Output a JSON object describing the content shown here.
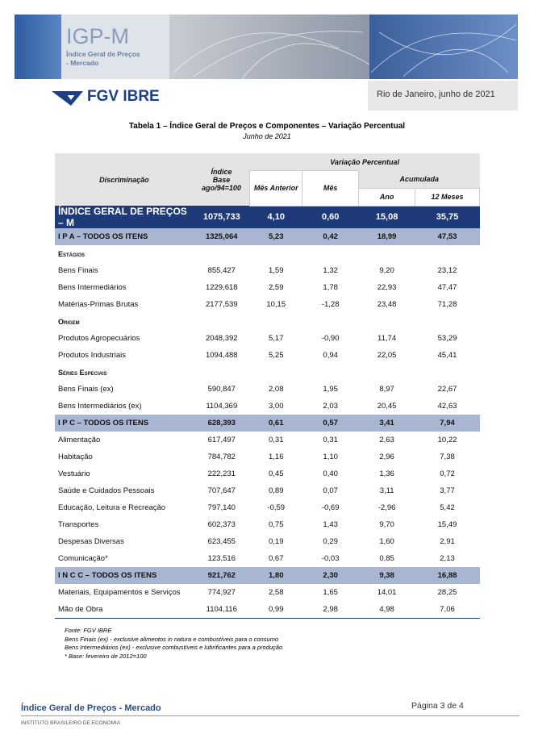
{
  "header": {
    "title": "IGP-M",
    "subtitle_lines": [
      "Índice Geral de Preços",
      "- Mercado"
    ],
    "logo": "FGV IBRE",
    "date": "Rio de Janeiro, junho de 2021"
  },
  "table": {
    "title": "Tabela 1 – Índice Geral de Preços e Componentes – Variação Percentual",
    "subtitle": "Junho de 2021",
    "headers": {
      "discriminacao": "Discriminação",
      "indice": "Índice Base ago/94=100",
      "variacao": "Variação Percentual",
      "mes_anterior": "Mês Anterior",
      "mes": "Mês",
      "acumulada": "Acumulada",
      "ano": "Ano",
      "doze_meses": "12 Meses"
    },
    "rows": [
      {
        "kind": "main",
        "cells": [
          "ÍNDICE GERAL DE PREÇOS – M",
          "1075,733",
          "4,10",
          "0,60",
          "15,08",
          "35,75"
        ]
      },
      {
        "kind": "group",
        "cells": [
          "I P A – TODOS OS ITENS",
          "1325,064",
          "5,23",
          "0,42",
          "18,99",
          "47,53"
        ]
      },
      {
        "kind": "section",
        "cells": [
          "Estágios"
        ]
      },
      {
        "kind": "item",
        "cells": [
          "Bens Finais",
          "855,427",
          "1,59",
          "1,32",
          "9,20",
          "23,12"
        ]
      },
      {
        "kind": "item",
        "cells": [
          "Bens Intermediários",
          "1229,618",
          "2,59",
          "1,78",
          "22,93",
          "47,47"
        ]
      },
      {
        "kind": "item",
        "cells": [
          "Matérias-Primas Brutas",
          "2177,539",
          "10,15",
          "-1,28",
          "23,48",
          "71,28"
        ]
      },
      {
        "kind": "section",
        "cells": [
          "Origem"
        ]
      },
      {
        "kind": "item",
        "cells": [
          "Produtos Agropecuários",
          "2048,392",
          "5,17",
          "-0,90",
          "11,74",
          "53,29"
        ]
      },
      {
        "kind": "item",
        "cells": [
          "Produtos Industriais",
          "1094,488",
          "5,25",
          "0,94",
          "22,05",
          "45,41"
        ]
      },
      {
        "kind": "section",
        "cells": [
          "Séries Especiais"
        ]
      },
      {
        "kind": "item",
        "cells": [
          "Bens Finais (ex)",
          "590,847",
          "2,08",
          "1,95",
          "8,97",
          "22,67"
        ]
      },
      {
        "kind": "item",
        "cells": [
          "Bens Intermediários (ex)",
          "1104,369",
          "3,00",
          "2,03",
          "20,45",
          "42,63"
        ]
      },
      {
        "kind": "group",
        "cells": [
          "I P C – TODOS OS ITENS",
          "628,393",
          "0,61",
          "0,57",
          "3,41",
          "7,94"
        ]
      },
      {
        "kind": "item",
        "cells": [
          "Alimentação",
          "617,497",
          "0,31",
          "0,31",
          "2,63",
          "10,22"
        ]
      },
      {
        "kind": "item",
        "cells": [
          "Habitação",
          "784,782",
          "1,16",
          "1,10",
          "2,96",
          "7,38"
        ]
      },
      {
        "kind": "item",
        "cells": [
          "Vestuário",
          "222,231",
          "0,45",
          "0,40",
          "1,36",
          "0,72"
        ]
      },
      {
        "kind": "item",
        "cells": [
          "Saúde e Cuidados Pessoais",
          "707,647",
          "0,89",
          "0,07",
          "3,11",
          "3,77"
        ]
      },
      {
        "kind": "item",
        "cells": [
          "Educação, Leitura e Recreação",
          "797,140",
          "-0,59",
          "-0,69",
          "-2,96",
          "5,42"
        ]
      },
      {
        "kind": "item",
        "cells": [
          "Transportes",
          "602,373",
          "0,75",
          "1,43",
          "9,70",
          "15,49"
        ]
      },
      {
        "kind": "item",
        "cells": [
          "Despesas Diversas",
          "623,455",
          "0,19",
          "0,29",
          "1,60",
          "2,91"
        ]
      },
      {
        "kind": "item",
        "cells": [
          "Comunicação*",
          "123,516",
          "0,67",
          "-0,03",
          "0,85",
          "2,13"
        ]
      },
      {
        "kind": "group",
        "cells": [
          "I N C C – TODOS OS ITENS",
          "921,762",
          "1,80",
          "2,30",
          "9,38",
          "16,88"
        ]
      },
      {
        "kind": "item",
        "cells": [
          "Materiais, Equipamentos e Serviços",
          "774,927",
          "2,58",
          "1,65",
          "14,01",
          "28,25"
        ]
      },
      {
        "kind": "item",
        "cells": [
          "Mão de Obra",
          "1104,116",
          "0,99",
          "2,98",
          "4,98",
          "7,06"
        ]
      }
    ],
    "notes": [
      "Fonte: FGV IBRE",
      "Bens Finais (ex) - exclusive alimentos in natura e combustíveis para o consumo",
      "Bens Intermediários (ex) - exclusive combustíveis e lubrificantes para a produção",
      "* Base: fevereiro de 2012=100"
    ]
  },
  "footer": {
    "title": "Índice Geral de Preços - Mercado",
    "page": "Página 3 de 4",
    "institute": "INSTITUTO BRASILEIRO DE ECONOMIA"
  }
}
